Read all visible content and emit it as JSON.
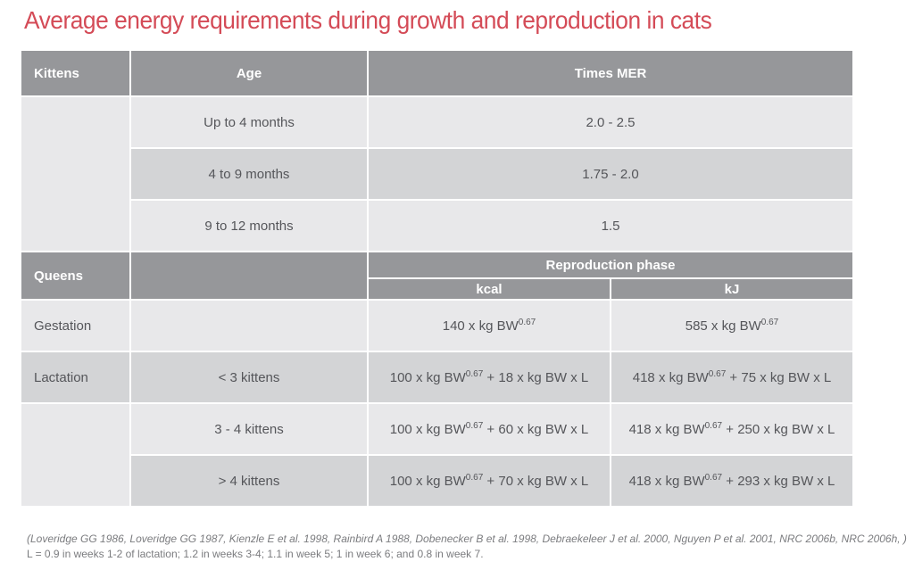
{
  "title": "Average energy requirements during growth and reproduction in cats",
  "colors": {
    "title_red": "#d44b57",
    "header_gray": "#96979a",
    "row_light": "#e8e8ea",
    "row_dark": "#d3d4d6",
    "body_text": "#55565a"
  },
  "table": {
    "headers": {
      "kittens": "Kittens",
      "age": "Age",
      "times_mer": "Times MER",
      "queens": "Queens",
      "reproduction_phase": "Reproduction phase",
      "kcal": "kcal",
      "kj": "kJ"
    },
    "kitten_rows": [
      {
        "age": "Up to 4 months",
        "times_mer": "2.0 - 2.5"
      },
      {
        "age": "4 to 9 months",
        "times_mer": "1.75 - 2.0"
      },
      {
        "age": "9 to 12 months",
        "times_mer": "1.5"
      }
    ],
    "queen_rows": [
      {
        "label": "Gestation",
        "litter": "",
        "kcal": {
          "pre": "140 x kg BW",
          "sup": "0.67",
          "post": ""
        },
        "kj": {
          "pre": "585 x kg BW",
          "sup": "0.67",
          "post": ""
        }
      },
      {
        "label": "Lactation",
        "litter": "< 3 kittens",
        "kcal": {
          "pre": "100 x kg BW",
          "sup": "0.67",
          "post": " + 18 x kg BW x L"
        },
        "kj": {
          "pre": "418 x kg BW",
          "sup": "0.67",
          "post": " + 75 x kg BW x L"
        }
      },
      {
        "label": "",
        "litter": "3 - 4 kittens",
        "kcal": {
          "pre": "100 x kg BW",
          "sup": "0.67",
          "post": " + 60 x kg BW x L"
        },
        "kj": {
          "pre": "418 x kg BW",
          "sup": "0.67",
          "post": " + 250 x kg BW x L"
        }
      },
      {
        "label": "",
        "litter": "> 4 kittens",
        "kcal": {
          "pre": "100 x kg BW",
          "sup": "0.67",
          "post": " + 70 x kg BW x L"
        },
        "kj": {
          "pre": "418 x kg BW",
          "sup": "0.67",
          "post": " + 293 x kg BW x L"
        }
      }
    ]
  },
  "footnotes": {
    "references": "(Loveridge GG 1986, Loveridge GG 1987, Kienzle E et al. 1998, Rainbird A 1988, Dobenecker B et al. 1998, Debraekeleer J et al. 2000, Nguyen P et al. 2001, NRC 2006b, NRC 2006h, )",
    "lactation_note": "L = 0.9 in weeks 1-2 of lactation; 1.2 in weeks 3-4; 1.1 in week 5; 1 in week 6; and 0.8 in week 7."
  }
}
